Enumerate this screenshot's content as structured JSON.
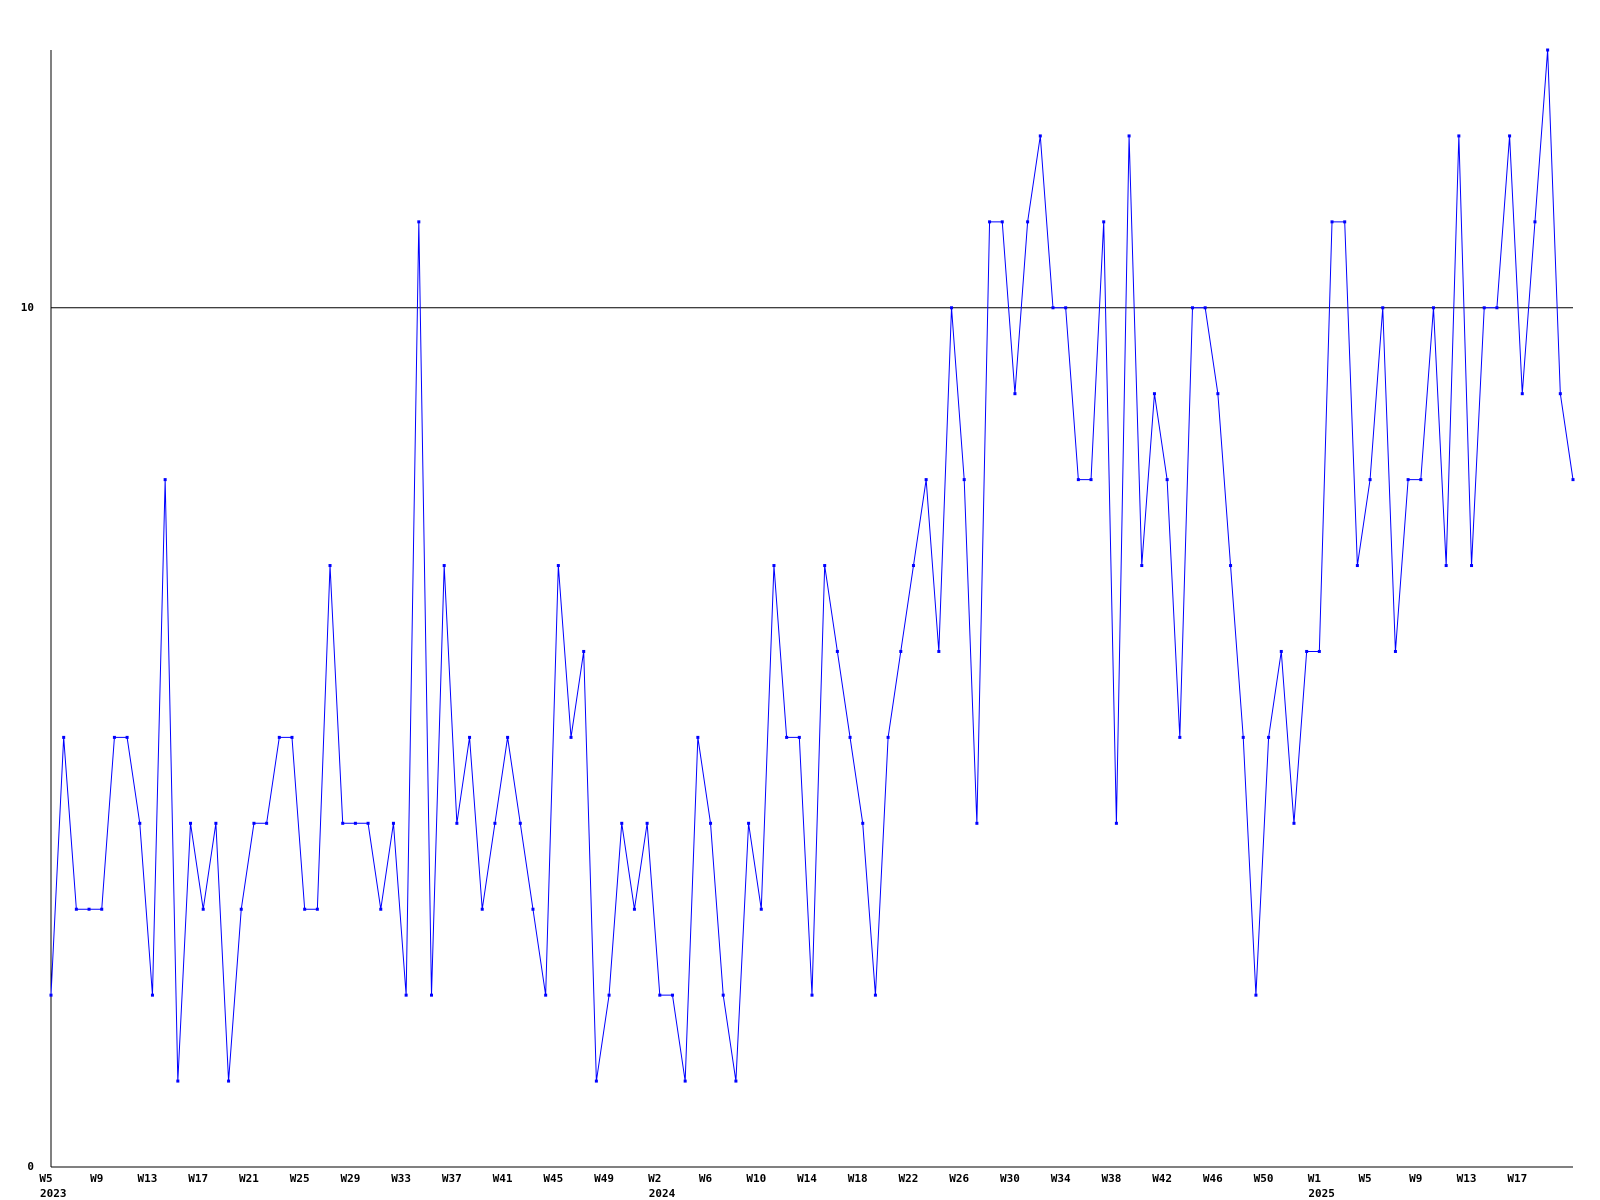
{
  "chart_data": {
    "type": "line",
    "categories": [
      "W5",
      null,
      null,
      null,
      "W9",
      null,
      null,
      null,
      "W13",
      null,
      null,
      null,
      "W17",
      null,
      null,
      null,
      "W21",
      null,
      null,
      null,
      "W25",
      null,
      null,
      null,
      "W29",
      null,
      null,
      null,
      "W33",
      null,
      null,
      null,
      "W37",
      null,
      null,
      null,
      "W41",
      null,
      null,
      null,
      "W45",
      null,
      null,
      null,
      "W49",
      null,
      null,
      null,
      "W2",
      null,
      null,
      null,
      "W6",
      null,
      null,
      null,
      "W10",
      null,
      null,
      null,
      "W14",
      null,
      null,
      null,
      "W18",
      null,
      null,
      null,
      "W22",
      null,
      null,
      null,
      "W26",
      null,
      null,
      null,
      "W30",
      null,
      null,
      null,
      "W34",
      null,
      null,
      null,
      "W38",
      null,
      null,
      null,
      "W42",
      null,
      null,
      null,
      "W46",
      null,
      null,
      null,
      "W50",
      null,
      null,
      null,
      "W1",
      null,
      null,
      null,
      "W5",
      null,
      null,
      null,
      "W9",
      null,
      null,
      null,
      "W13",
      null,
      null,
      null,
      "W17",
      null,
      null,
      null,
      null
    ],
    "category_years": [
      "2023",
      null,
      null,
      null,
      null,
      null,
      null,
      null,
      null,
      null,
      null,
      null,
      null,
      null,
      null,
      null,
      null,
      null,
      null,
      null,
      null,
      null,
      null,
      null,
      null,
      null,
      null,
      null,
      null,
      null,
      null,
      null,
      null,
      null,
      null,
      null,
      null,
      null,
      null,
      null,
      null,
      null,
      null,
      null,
      null,
      null,
      null,
      null,
      "2024",
      null,
      null,
      null,
      null,
      null,
      null,
      null,
      null,
      null,
      null,
      null,
      null,
      null,
      null,
      null,
      null,
      null,
      null,
      null,
      null,
      null,
      null,
      null,
      null,
      null,
      null,
      null,
      null,
      null,
      null,
      null,
      null,
      null,
      null,
      null,
      null,
      null,
      null,
      null,
      null,
      null,
      null,
      null,
      null,
      null,
      null,
      null,
      null,
      null,
      null,
      null,
      "2025",
      null,
      null,
      null,
      null,
      null,
      null,
      null,
      null,
      null,
      null,
      null,
      null,
      null,
      null,
      null,
      null,
      null,
      null,
      null,
      null
    ],
    "series": [
      {
        "color": "#0000ff",
        "values": [
          2,
          5,
          3,
          3,
          3,
          5,
          5,
          4,
          2,
          8,
          1,
          4,
          3,
          4,
          1,
          3,
          4,
          4,
          5,
          5,
          3,
          3,
          7,
          4,
          4,
          4,
          3,
          4,
          2,
          11,
          2,
          7,
          4,
          5,
          3,
          4,
          5,
          4,
          3,
          2,
          7,
          5,
          6,
          1,
          2,
          4,
          3,
          4,
          2,
          2,
          1,
          5,
          4,
          2,
          1,
          4,
          3,
          7,
          5,
          5,
          2,
          7,
          6,
          5,
          4,
          2,
          5,
          6,
          7,
          8,
          6,
          10,
          8,
          4,
          11,
          11,
          9,
          11,
          12,
          10,
          10,
          8,
          8,
          11,
          4,
          12,
          7,
          9,
          8,
          5,
          10,
          10,
          9,
          7,
          5,
          2,
          5,
          6,
          4,
          6,
          6,
          11,
          11,
          7,
          8,
          10,
          6,
          8,
          8,
          10,
          7,
          12,
          7,
          10,
          10,
          12,
          9,
          11,
          13,
          9,
          8
        ]
      }
    ],
    "ylim": [
      0,
      13
    ],
    "yticks": [
      0,
      10
    ],
    "grid": true
  }
}
